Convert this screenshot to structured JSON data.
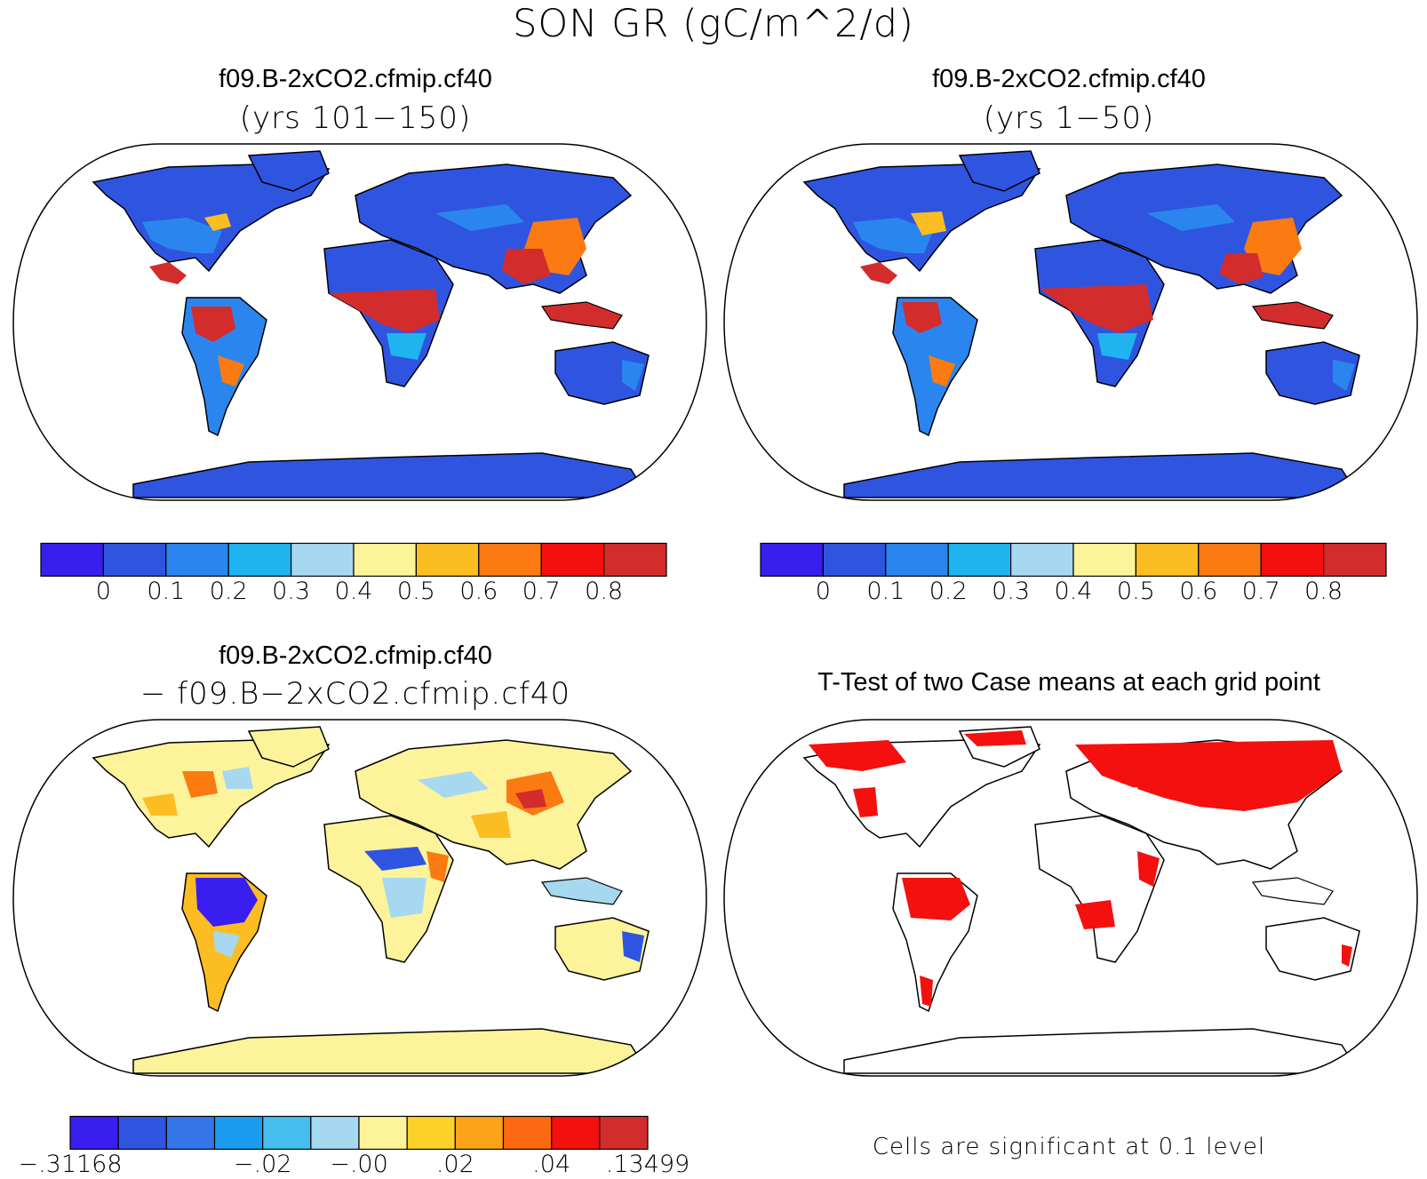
{
  "figure": {
    "title": "SON GR (gC/m^2/d)"
  },
  "panels": [
    {
      "title": "f09.B-2xCO2.cfmip.cf40",
      "subtitle": "(yrs 101−150)",
      "colorbar": {
        "colors": [
          "#3a1ef0",
          "#2f55e0",
          "#2a86ee",
          "#1fb4ef",
          "#a6d8f0",
          "#fcf39a",
          "#fcbd22",
          "#fb7a12",
          "#f4100e",
          "#d22c2c"
        ],
        "labels": [
          "0",
          "0.1",
          "0.2",
          "0.3",
          "0.4",
          "0.5",
          "0.6",
          "0.7",
          "0.8"
        ]
      }
    },
    {
      "title": "f09.B-2xCO2.cfmip.cf40",
      "subtitle": "(yrs 1−50)",
      "colorbar": {
        "colors": [
          "#3a1ef0",
          "#2f55e0",
          "#2a86ee",
          "#1fb4ef",
          "#a6d8f0",
          "#fcf39a",
          "#fcbd22",
          "#fb7a12",
          "#f4100e",
          "#d22c2c"
        ],
        "labels": [
          "0",
          "0.1",
          "0.2",
          "0.3",
          "0.4",
          "0.5",
          "0.6",
          "0.7",
          "0.8"
        ]
      }
    },
    {
      "title": "f09.B-2xCO2.cfmip.cf40",
      "subtitle": "− f09.B−2xCO2.cfmip.cf40",
      "colorbar": {
        "colors": [
          "#3a1ef0",
          "#2f55e0",
          "#3475e8",
          "#1a9cf0",
          "#46bdef",
          "#a6d8f0",
          "#fcf39a",
          "#fcd12a",
          "#fca31a",
          "#fb6a12",
          "#f4100e",
          "#d22c2c"
        ],
        "labels": [
          "−.31168",
          "−.02",
          "−.00",
          ".02",
          ".04",
          ".13499"
        ]
      }
    },
    {
      "title": "T-Test of two Case means at each grid point",
      "note": "Cells are significant at 0.1 level"
    }
  ]
}
